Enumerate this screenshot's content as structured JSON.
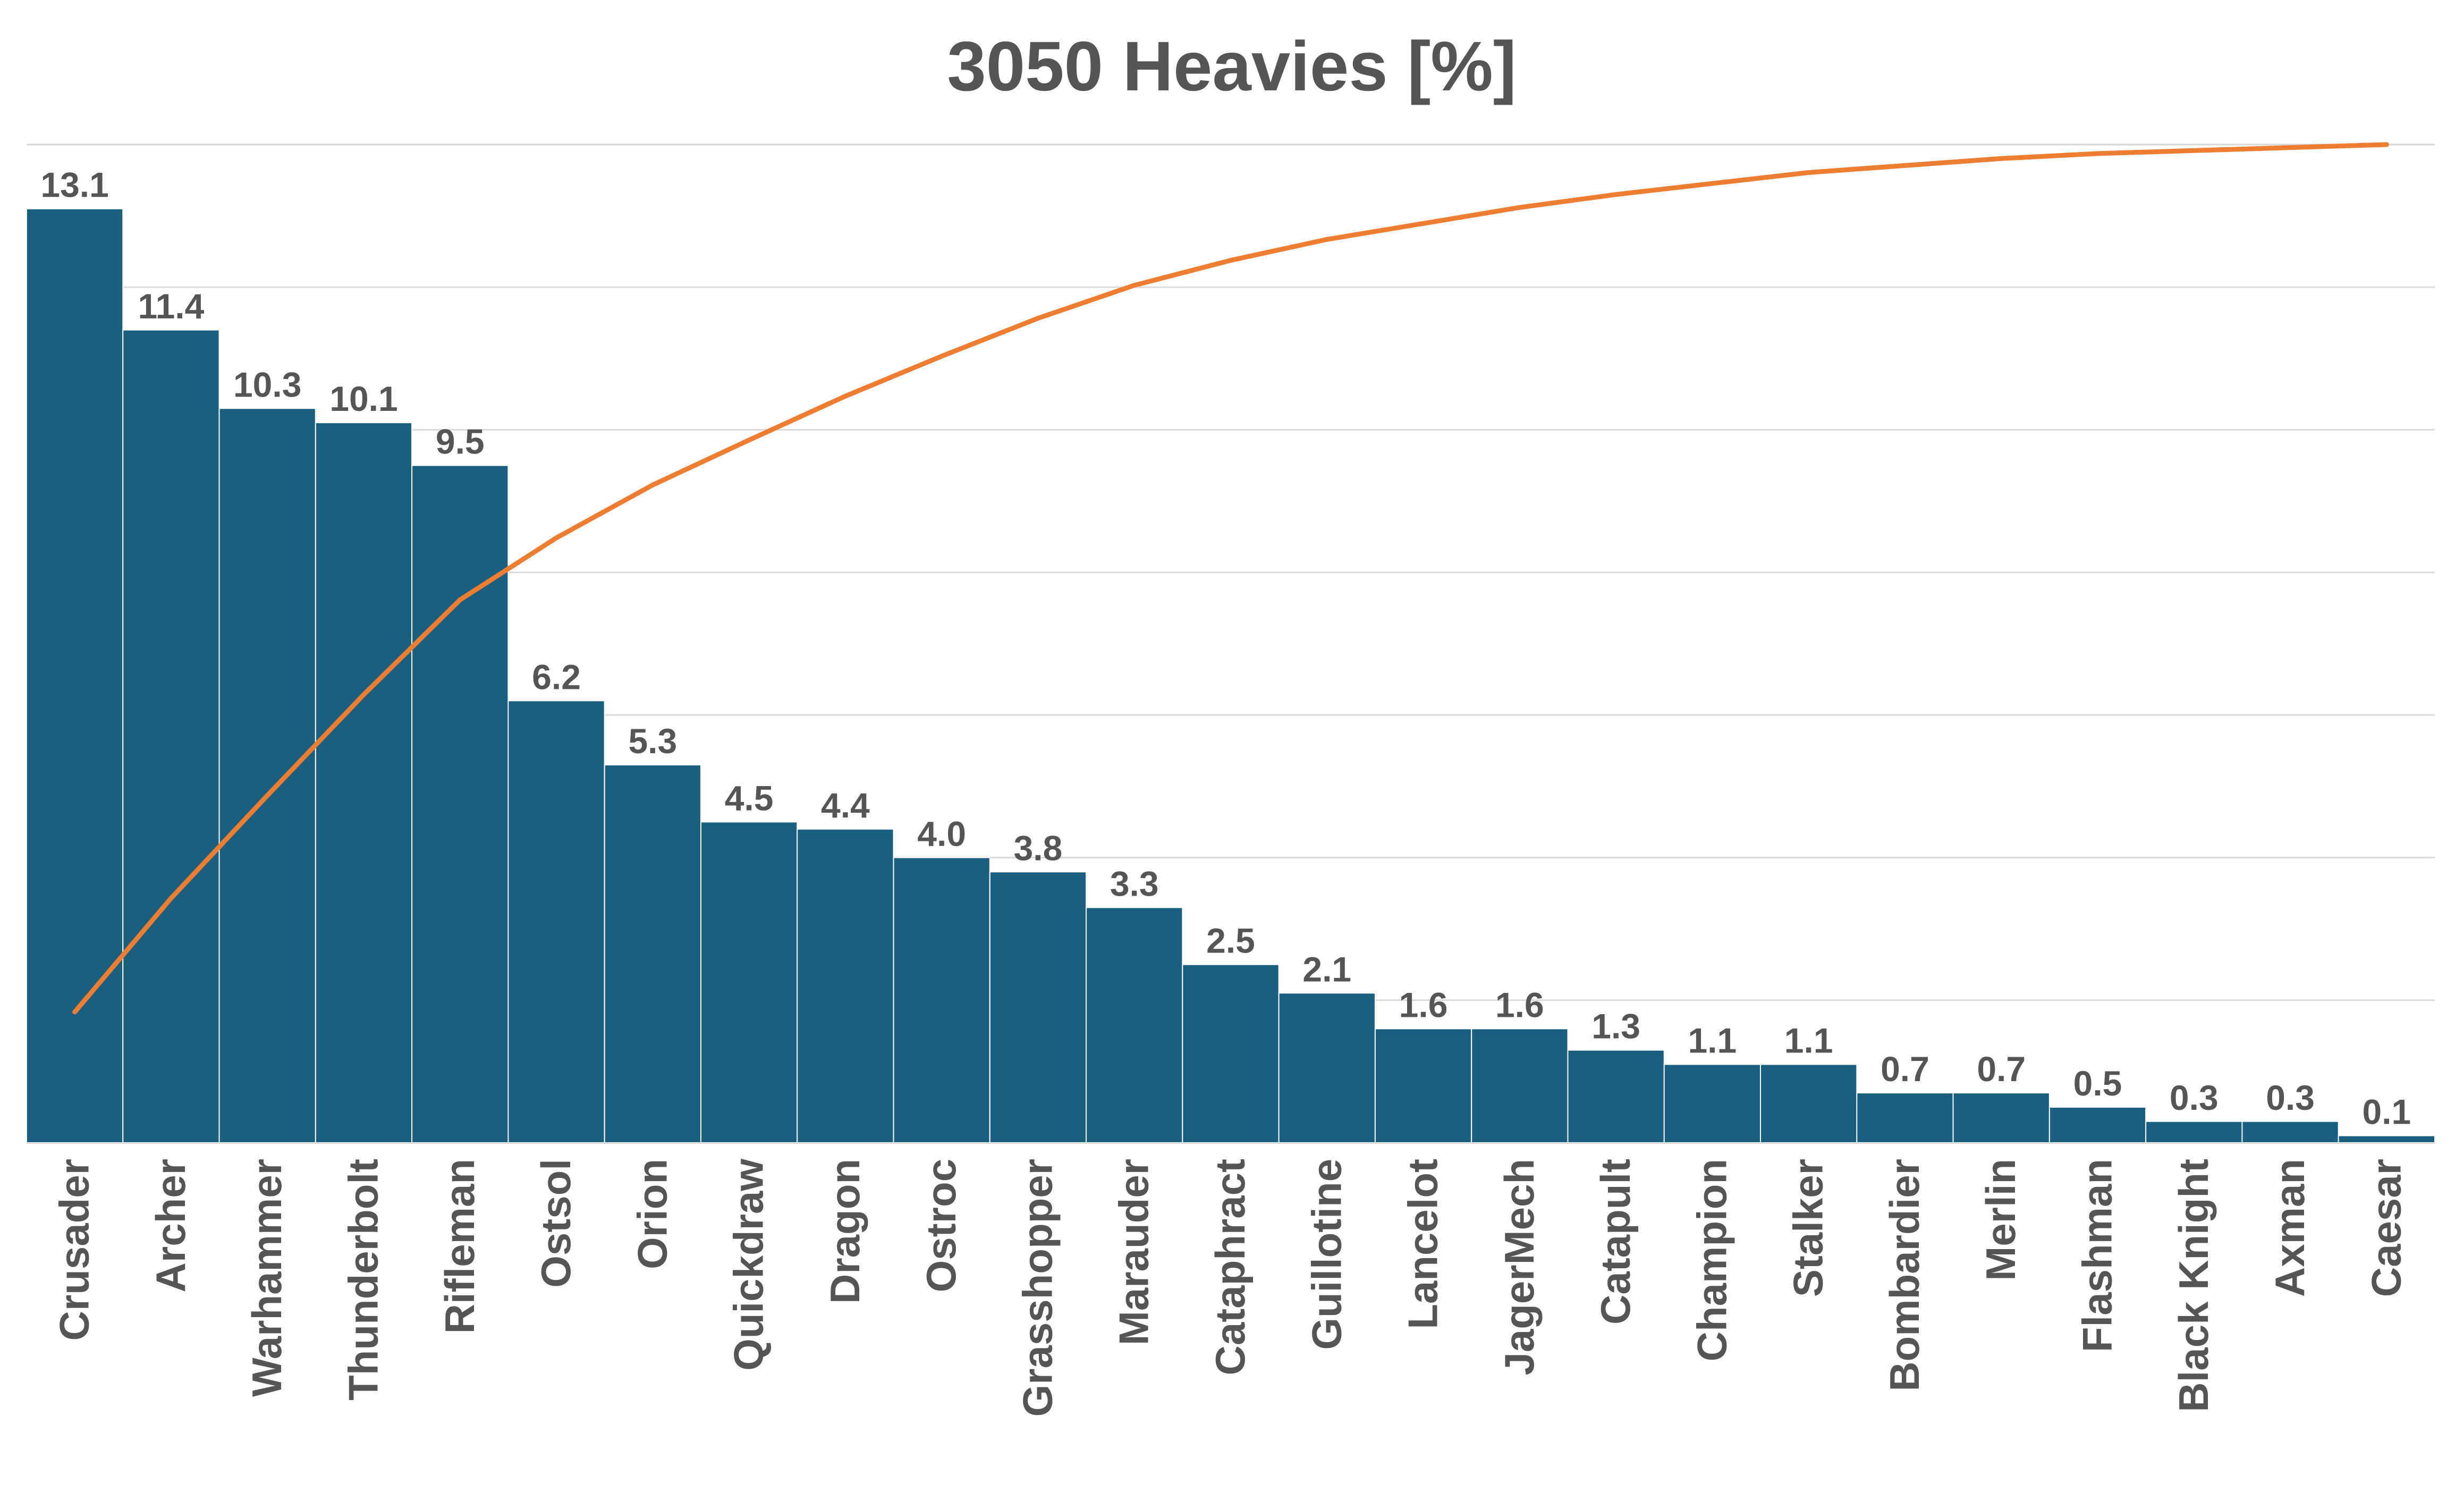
{
  "chart_data": {
    "type": "bar",
    "title": "3050 Heavies [%]",
    "categories": [
      "Crusader",
      "Archer",
      "Warhammer",
      "Thunderbolt",
      "Rifleman",
      "Ostsol",
      "Orion",
      "Quickdraw",
      "Dragon",
      "Ostroc",
      "Grasshopper",
      "Marauder",
      "Cataphract",
      "Guillotine",
      "Lancelot",
      "JagerMech",
      "Catapult",
      "Champion",
      "Stalker",
      "Bombardier",
      "Merlin",
      "Flashman",
      "Black Knight",
      "Axman",
      "Caesar"
    ],
    "series": [
      {
        "type": "bar",
        "values": [
          13.1,
          11.4,
          10.3,
          10.1,
          9.5,
          6.2,
          5.3,
          4.5,
          4.4,
          4.0,
          3.8,
          3.3,
          2.5,
          2.1,
          1.6,
          1.6,
          1.3,
          1.1,
          1.1,
          0.7,
          0.7,
          0.5,
          0.3,
          0.3,
          0.1
        ],
        "data_labels": [
          "13.1",
          "11.4",
          "10.3",
          "10.1",
          "9.5",
          "6.2",
          "5.3",
          "4.5",
          "4.4",
          "4.0",
          "3.8",
          "3.3",
          "2.5",
          "2.1",
          "1.6",
          "1.6",
          "1.3",
          "1.1",
          "1.1",
          "0.7",
          "0.7",
          "0.5",
          "0.3",
          "0.3",
          "0.1"
        ],
        "color": "#1a5e80"
      },
      {
        "type": "line",
        "values": [
          13.1,
          24.5,
          34.8,
          44.9,
          54.4,
          60.6,
          65.9,
          70.4,
          74.8,
          78.8,
          82.6,
          85.9,
          88.4,
          90.5,
          92.1,
          93.7,
          95.0,
          96.1,
          97.2,
          97.9,
          98.6,
          99.1,
          99.4,
          99.7,
          100.0
        ],
        "color": "#ed7d31"
      }
    ],
    "ylim": [
      0,
      14
    ],
    "y2lim": [
      0,
      100
    ],
    "grid": true,
    "legend": "none",
    "gridline_color": "#d9d9d9",
    "text_color": "#555555"
  }
}
